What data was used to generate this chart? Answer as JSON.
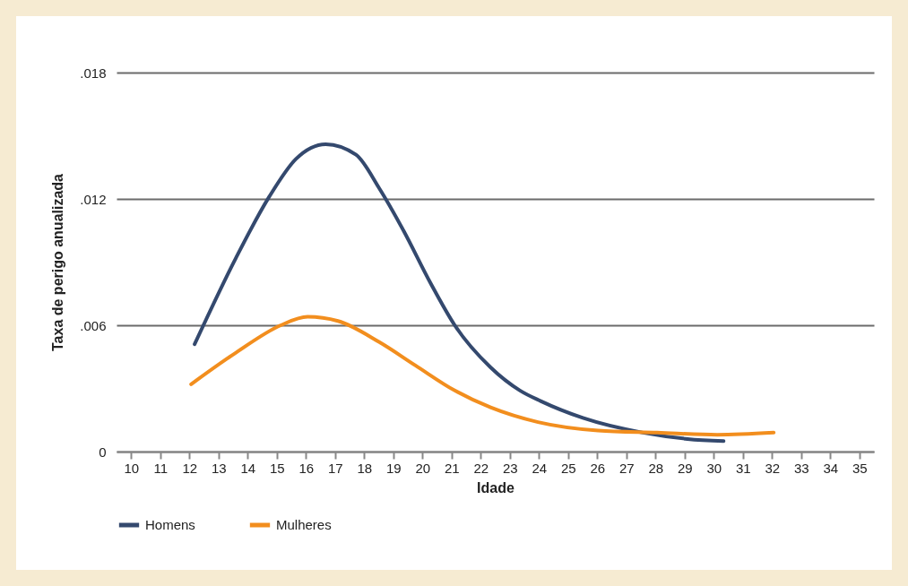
{
  "chart_data": {
    "type": "line",
    "xlabel": "Idade",
    "ylabel": "Taxa de perigo anualizada",
    "xlim": [
      9.5,
      35.5
    ],
    "xticks": [
      10,
      11,
      12,
      13,
      14,
      15,
      16,
      17,
      18,
      19,
      20,
      21,
      22,
      23,
      24,
      25,
      26,
      27,
      28,
      29,
      30,
      31,
      32,
      33,
      34,
      35
    ],
    "ylim": [
      0,
      0.018
    ],
    "yticks": [
      0,
      {
        "value": 0.006,
        "label": ".006"
      },
      {
        "value": 0.012,
        "label": ".012"
      },
      {
        "value": 0.018,
        "label": ".018"
      }
    ],
    "grid": "y",
    "legend": "bottom",
    "series": [
      {
        "name": "Homens",
        "color": "#34496e",
        "x": [
          12.18,
          13.6,
          14.74,
          15.66,
          16.68,
          17.72,
          18.52,
          19.35,
          20.28,
          21.11,
          22.34,
          23.35,
          24.06,
          25.51,
          27.57,
          29.1,
          30.34
        ],
        "values": [
          0.0051,
          0.0092,
          0.0121,
          0.0139,
          0.0146,
          0.0141,
          0.0125,
          0.0105,
          0.008,
          0.006,
          0.004,
          0.0029,
          0.0024,
          0.0016,
          0.0009,
          0.0006,
          0.0005
        ]
      },
      {
        "name": "Mulheres",
        "color": "#f28e1e",
        "x": [
          12.06,
          13.6,
          15.14,
          16.06,
          17.1,
          18.52,
          19.75,
          21.11,
          22.34,
          23.97,
          26.03,
          28.06,
          30.12,
          32.06
        ],
        "values": [
          0.0032,
          0.0047,
          0.006,
          0.0064,
          0.0062,
          0.0052,
          0.0041,
          0.0029,
          0.0021,
          0.0014,
          0.001,
          0.0009,
          0.0008,
          0.0009
        ]
      }
    ]
  }
}
